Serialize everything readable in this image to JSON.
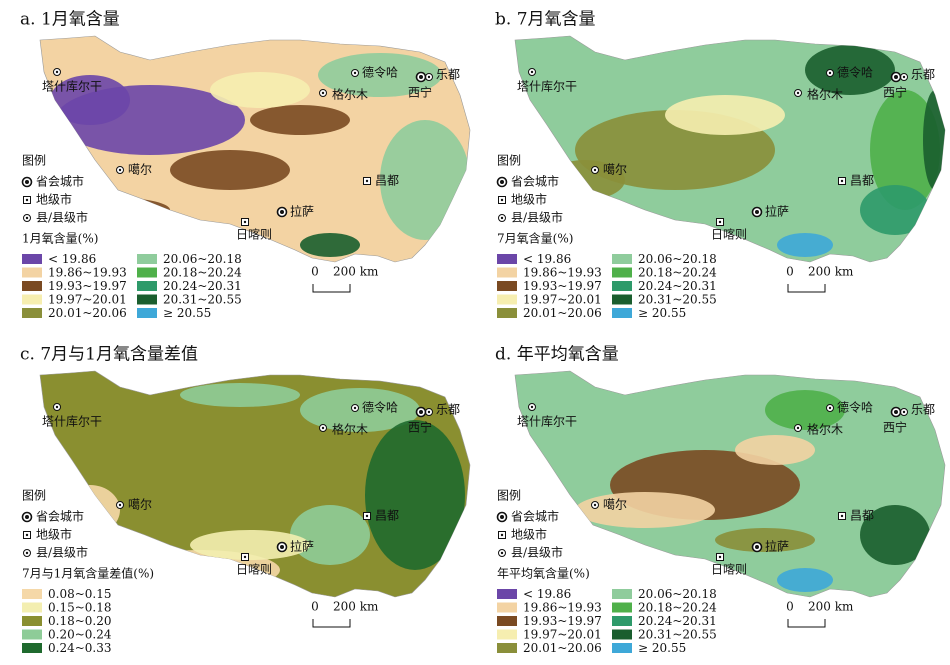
{
  "panels": [
    {
      "title": "a. 1月氧含量",
      "legend_heading": "图例",
      "symbols": [
        "省会城市",
        "地级市",
        "县/县级市"
      ],
      "cities": [
        "塔什库尔干",
        "德令哈",
        "乐都",
        "格尔木",
        "西宁",
        "噶尔",
        "昌都",
        "拉萨",
        "日喀则"
      ],
      "legend_title": "1月氧含量(%)",
      "legend_items": [
        {
          "label": "< 19.86",
          "color": "#6b46a8"
        },
        {
          "label": "19.86~19.93",
          "color": "#f3d3a3"
        },
        {
          "label": "19.93~19.97",
          "color": "#7a4a22"
        },
        {
          "label": "19.97~20.01",
          "color": "#f6eeb0"
        },
        {
          "label": "20.01~20.06",
          "color": "#8a8f3a"
        },
        {
          "label": "20.06~20.18",
          "color": "#8fcc9c"
        },
        {
          "label": "20.18~20.24",
          "color": "#4fb04a"
        },
        {
          "label": "20.24~20.31",
          "color": "#2e9a6a"
        },
        {
          "label": "20.31~20.55",
          "color": "#1a5e2e"
        },
        {
          "label": "≥ 20.55",
          "color": "#3ea8d8"
        }
      ],
      "scale": [
        "0",
        "200 km"
      ]
    },
    {
      "title": "b. 7月氧含量",
      "legend_heading": "图例",
      "symbols": [
        "省会城市",
        "地级市",
        "县/县级市"
      ],
      "cities": [
        "塔什库尔干",
        "德令哈",
        "乐都",
        "格尔木",
        "西宁",
        "噶尔",
        "昌都",
        "拉萨",
        "日喀则"
      ],
      "legend_title": "7月氧含量(%)",
      "legend_items": [
        {
          "label": "< 19.86",
          "color": "#6b46a8"
        },
        {
          "label": "19.86~19.93",
          "color": "#f3d3a3"
        },
        {
          "label": "19.93~19.97",
          "color": "#7a4a22"
        },
        {
          "label": "19.97~20.01",
          "color": "#f6eeb0"
        },
        {
          "label": "20.01~20.06",
          "color": "#8a8f3a"
        },
        {
          "label": "20.06~20.18",
          "color": "#8fcc9c"
        },
        {
          "label": "20.18~20.24",
          "color": "#4fb04a"
        },
        {
          "label": "20.24~20.31",
          "color": "#2e9a6a"
        },
        {
          "label": "20.31~20.55",
          "color": "#1a5e2e"
        },
        {
          "label": "≥ 20.55",
          "color": "#3ea8d8"
        }
      ],
      "scale": [
        "0",
        "200 km"
      ]
    },
    {
      "title": "c. 7月与1月氧含量差值",
      "legend_heading": "图例",
      "symbols": [
        "省会城市",
        "地级市",
        "县/县级市"
      ],
      "cities": [
        "塔什库尔干",
        "德令哈",
        "乐都",
        "格尔木",
        "西宁",
        "噶尔",
        "昌都",
        "拉萨",
        "日喀则"
      ],
      "legend_title": "7月与1月氧含量差值(%)",
      "legend_items": [
        {
          "label": "0.08~0.15",
          "color": "#f5d8a8"
        },
        {
          "label": "0.15~0.18",
          "color": "#f3eeb0"
        },
        {
          "label": "0.18~0.20",
          "color": "#8a8f30"
        },
        {
          "label": "0.20~0.24",
          "color": "#8ecc98"
        },
        {
          "label": "0.24~0.33",
          "color": "#1f6a2e"
        }
      ],
      "scale": [
        "0",
        "200 km"
      ]
    },
    {
      "title": "d. 年平均氧含量",
      "legend_heading": "图例",
      "symbols": [
        "省会城市",
        "地级市",
        "县/县级市"
      ],
      "cities": [
        "塔什库尔干",
        "德令哈",
        "乐都",
        "格尔木",
        "西宁",
        "噶尔",
        "昌都",
        "拉萨",
        "日喀则"
      ],
      "legend_title": "年平均氧含量(%)",
      "legend_items": [
        {
          "label": "< 19.86",
          "color": "#6b46a8"
        },
        {
          "label": "19.86~19.93",
          "color": "#f3d3a3"
        },
        {
          "label": "19.93~19.97",
          "color": "#7a4a22"
        },
        {
          "label": "19.97~20.01",
          "color": "#f6eeb0"
        },
        {
          "label": "20.01~20.06",
          "color": "#8a8f3a"
        },
        {
          "label": "20.06~20.18",
          "color": "#8fcc9c"
        },
        {
          "label": "20.18~20.24",
          "color": "#4fb04a"
        },
        {
          "label": "20.24~20.31",
          "color": "#2e9a6a"
        },
        {
          "label": "20.31~20.55",
          "color": "#1a5e2e"
        },
        {
          "label": "≥ 20.55",
          "color": "#3ea8d8"
        }
      ],
      "scale": [
        "0",
        "200 km"
      ]
    }
  ]
}
